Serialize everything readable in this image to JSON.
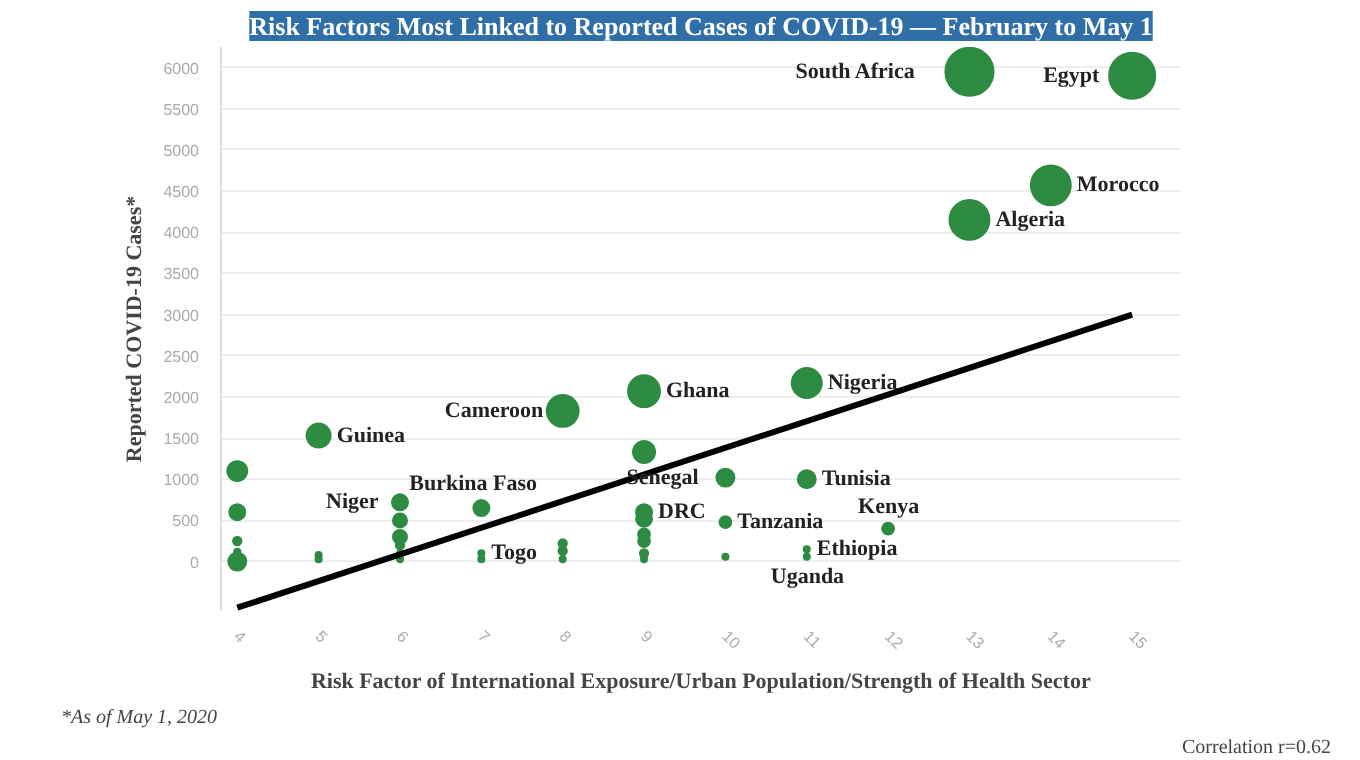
{
  "chart_data": {
    "type": "bubble",
    "title": "Risk Factors Most Linked to Reported Cases of COVID-19 — February to May 1",
    "xlabel": "Risk Factor of International Exposure/Urban Population/Strength of Health Sector",
    "ylabel": "Reported COVID-19 Cases*",
    "xlim": [
      3.8,
      15.6
    ],
    "xticks": [
      4,
      5,
      6,
      7,
      8,
      9,
      10,
      11,
      12,
      13,
      14,
      15
    ],
    "ylim": [
      -600,
      6250
    ],
    "yticks": [
      0,
      500,
      1000,
      1500,
      2000,
      2500,
      3000,
      3500,
      4000,
      4500,
      5000,
      5500,
      6000
    ],
    "grid": "y",
    "series": [
      {
        "color": "#2e8b42",
        "x": [
          4,
          4,
          4,
          4,
          4,
          5,
          5,
          5,
          6,
          6,
          6,
          6,
          6,
          6,
          7,
          7,
          7,
          8,
          8,
          8,
          8,
          9,
          9,
          9,
          9,
          9,
          9,
          9,
          9,
          10,
          10,
          10,
          11,
          11,
          11,
          11,
          12,
          13,
          13,
          14,
          15
        ],
        "values": [
          1100,
          600,
          250,
          120,
          0,
          1530,
          80,
          30,
          720,
          500,
          300,
          200,
          100,
          30,
          650,
          100,
          30,
          1830,
          220,
          130,
          30,
          2070,
          1330,
          600,
          520,
          330,
          250,
          100,
          30,
          1020,
          480,
          60,
          2170,
          1000,
          150,
          60,
          400,
          5950,
          4150,
          4570,
          5900
        ],
        "sizes": [
          0.17,
          0.11,
          0.03,
          0.016,
          0.14,
          0.25,
          0.016,
          0.016,
          0.11,
          0.085,
          0.085,
          0.03,
          0.016,
          0.016,
          0.11,
          0.016,
          0.016,
          0.44,
          0.03,
          0.03,
          0.016,
          0.44,
          0.21,
          0.11,
          0.11,
          0.06,
          0.06,
          0.03,
          0.016,
          0.14,
          0.06,
          0.016,
          0.39,
          0.14,
          0.016,
          0.016,
          0.06,
          1,
          0.69,
          0.69,
          0.92
        ]
      },
      {
        "type": "line",
        "color": "#000000",
        "x": [
          4,
          15
        ],
        "values": [
          -560,
          3000
        ]
      }
    ],
    "annotations": [
      {
        "text": "South Africa",
        "x": 13,
        "y": 5950
      },
      {
        "text": "Egypt",
        "x": 15,
        "y": 5900
      },
      {
        "text": "Morocco",
        "x": 14,
        "y": 4570
      },
      {
        "text": "Algeria",
        "x": 13,
        "y": 4150
      },
      {
        "text": "Nigeria",
        "x": 11,
        "y": 2170
      },
      {
        "text": "Ghana",
        "x": 9,
        "y": 2070
      },
      {
        "text": "Cameroon",
        "x": 8,
        "y": 1830
      },
      {
        "text": "Guinea",
        "x": 5,
        "y": 1530
      },
      {
        "text": "Niger",
        "x": 6,
        "y": 720
      },
      {
        "text": "Burkina Faso",
        "x": 7,
        "y": 650
      },
      {
        "text": "Togo",
        "x": 7,
        "y": 100
      },
      {
        "text": "DRC",
        "x": 9,
        "y": 600
      },
      {
        "text": "Senegal",
        "x": 10,
        "y": 1020
      },
      {
        "text": "Tanzania",
        "x": 10,
        "y": 480
      },
      {
        "text": "Ethiopia",
        "x": 11,
        "y": 150
      },
      {
        "text": "Uganda",
        "x": 11,
        "y": 60
      },
      {
        "text": "Tunisia",
        "x": 11,
        "y": 1000
      },
      {
        "text": "Kenya",
        "x": 12,
        "y": 400
      },
      "*As of May 1, 2020",
      "Correlation r=0.62"
    ]
  }
}
